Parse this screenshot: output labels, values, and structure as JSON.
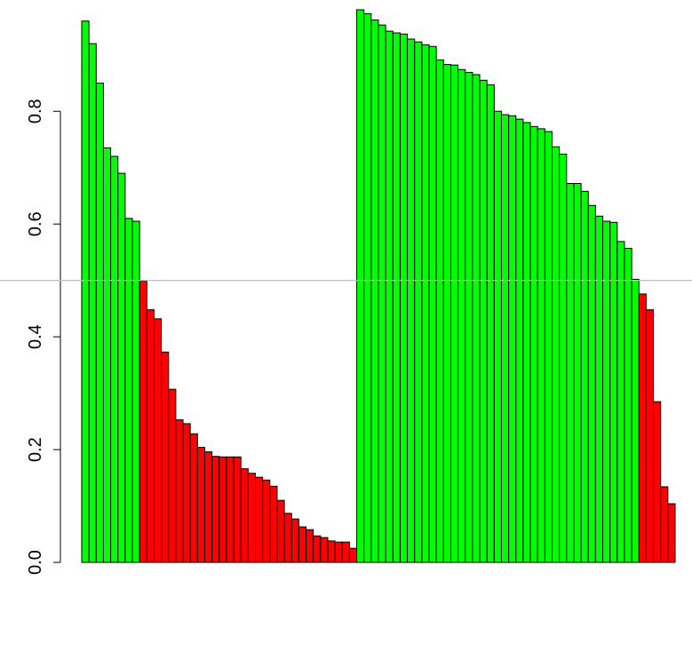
{
  "chart_data": {
    "type": "bar",
    "categories": [
      null,
      null,
      null,
      null,
      null,
      null,
      null,
      null,
      null,
      null,
      null,
      null,
      null,
      null,
      null,
      null,
      null,
      null,
      null,
      null,
      null,
      null,
      null,
      null,
      null,
      null,
      null,
      null,
      null,
      null,
      null,
      null,
      null,
      null,
      null,
      null,
      null,
      null,
      null,
      null,
      null,
      null,
      null,
      null,
      null,
      null,
      null,
      null,
      null,
      null,
      null,
      null,
      null,
      null,
      null,
      null,
      null,
      null,
      null,
      null,
      null,
      null,
      null,
      null,
      null,
      null,
      null,
      null,
      null,
      null,
      null,
      null,
      null,
      null,
      null,
      null,
      null,
      null,
      null,
      null,
      null,
      null
    ],
    "values": [
      0.96,
      0.92,
      0.85,
      0.735,
      0.72,
      0.69,
      0.61,
      0.605,
      0.499,
      0.448,
      0.432,
      0.373,
      0.307,
      0.253,
      0.246,
      0.228,
      0.204,
      0.196,
      0.188,
      0.187,
      0.187,
      0.187,
      0.166,
      0.158,
      0.151,
      0.146,
      0.135,
      0.11,
      0.087,
      0.077,
      0.063,
      0.058,
      0.047,
      0.044,
      0.038,
      0.036,
      0.036,
      0.025,
      0.98,
      0.973,
      0.962,
      0.953,
      0.942,
      0.939,
      0.937,
      0.928,
      0.923,
      0.918,
      0.915,
      0.891,
      0.883,
      0.882,
      0.874,
      0.869,
      0.865,
      0.855,
      0.847,
      0.8,
      0.794,
      0.792,
      0.786,
      0.78,
      0.773,
      0.769,
      0.764,
      0.737,
      0.724,
      0.672,
      0.672,
      0.658,
      0.633,
      0.614,
      0.605,
      0.603,
      0.569,
      0.557,
      0.502,
      0.476,
      0.448,
      0.285,
      0.134,
      0.104
    ],
    "colors": [
      "#00ff00",
      "#00ff00",
      "#00ff00",
      "#00ff00",
      "#00ff00",
      "#00ff00",
      "#00ff00",
      "#00ff00",
      "#ff0000",
      "#ff0000",
      "#ff0000",
      "#ff0000",
      "#ff0000",
      "#ff0000",
      "#ff0000",
      "#ff0000",
      "#ff0000",
      "#ff0000",
      "#ff0000",
      "#ff0000",
      "#ff0000",
      "#ff0000",
      "#ff0000",
      "#ff0000",
      "#ff0000",
      "#ff0000",
      "#ff0000",
      "#ff0000",
      "#ff0000",
      "#ff0000",
      "#ff0000",
      "#ff0000",
      "#ff0000",
      "#ff0000",
      "#ff0000",
      "#ff0000",
      "#ff0000",
      "#ff0000",
      "#00ff00",
      "#00ff00",
      "#00ff00",
      "#00ff00",
      "#00ff00",
      "#00ff00",
      "#00ff00",
      "#00ff00",
      "#00ff00",
      "#00ff00",
      "#00ff00",
      "#00ff00",
      "#00ff00",
      "#00ff00",
      "#00ff00",
      "#00ff00",
      "#00ff00",
      "#00ff00",
      "#00ff00",
      "#00ff00",
      "#00ff00",
      "#00ff00",
      "#00ff00",
      "#00ff00",
      "#00ff00",
      "#00ff00",
      "#00ff00",
      "#00ff00",
      "#00ff00",
      "#00ff00",
      "#00ff00",
      "#00ff00",
      "#00ff00",
      "#00ff00",
      "#00ff00",
      "#00ff00",
      "#00ff00",
      "#00ff00",
      "#00ff00",
      "#ff0000",
      "#ff0000",
      "#ff0000",
      "#ff0000",
      "#ff0000"
    ],
    "ylim": [
      0,
      0.98
    ],
    "yticks": [
      {
        "value": 0,
        "label": "0.0"
      },
      0.2,
      0.4,
      0.6,
      0.8
    ],
    "reference_line": 0.5,
    "reference_color": "#bebebe"
  }
}
